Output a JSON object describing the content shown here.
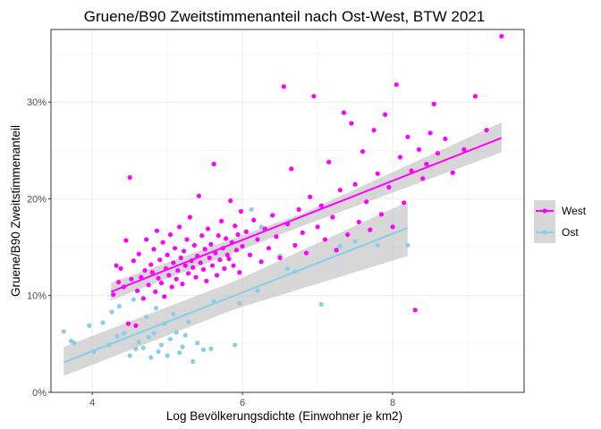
{
  "chart_data": {
    "type": "scatter",
    "title": "Gruene/B90 Zweitstimmenanteil nach Ost-West, BTW 2021",
    "xlabel": "Log Bevölkerungsdichte (Einwohner je km2)",
    "ylabel": "Gruene/B90 Zweitstimmenanteil",
    "xlim": [
      3.45,
      9.75
    ],
    "ylim": [
      0,
      0.375
    ],
    "x_ticks": [
      4,
      6,
      8
    ],
    "x_tick_labels": [
      "4",
      "6",
      "8"
    ],
    "y_ticks": [
      0,
      0.1,
      0.2,
      0.3
    ],
    "y_tick_labels": [
      "0%",
      "10%",
      "20%",
      "30%"
    ],
    "grid": true,
    "legend_position": "right",
    "series": [
      {
        "name": "West",
        "color": "#ff00ff",
        "trend": {
          "x": [
            4.25,
            9.45
          ],
          "y": [
            0.104,
            0.263
          ]
        },
        "band": {
          "x": [
            4.25,
            6.8,
            9.45
          ],
          "lower": [
            0.095,
            0.172,
            0.248
          ],
          "upper": [
            0.113,
            0.185,
            0.279
          ]
        },
        "points": [
          [
            4.28,
            0.101
          ],
          [
            4.32,
            0.131
          ],
          [
            4.35,
            0.114
          ],
          [
            4.38,
            0.128
          ],
          [
            4.42,
            0.109
          ],
          [
            4.45,
            0.157
          ],
          [
            4.48,
            0.071
          ],
          [
            4.5,
            0.222
          ],
          [
            4.52,
            0.117
          ],
          [
            4.55,
            0.136
          ],
          [
            4.58,
            0.069
          ],
          [
            4.6,
            0.105
          ],
          [
            4.62,
            0.143
          ],
          [
            4.65,
            0.119
          ],
          [
            4.68,
            0.097
          ],
          [
            4.7,
            0.126
          ],
          [
            4.72,
            0.158
          ],
          [
            4.75,
            0.111
          ],
          [
            4.78,
            0.132
          ],
          [
            4.8,
            0.124
          ],
          [
            4.82,
            0.148
          ],
          [
            4.84,
            0.104
          ],
          [
            4.86,
            0.167
          ],
          [
            4.88,
            0.118
          ],
          [
            4.9,
            0.137
          ],
          [
            4.92,
            0.113
          ],
          [
            4.94,
            0.155
          ],
          [
            4.96,
            0.099
          ],
          [
            4.98,
            0.128
          ],
          [
            5.0,
            0.142
          ],
          [
            5.02,
            0.121
          ],
          [
            5.04,
            0.163
          ],
          [
            5.06,
            0.109
          ],
          [
            5.08,
            0.134
          ],
          [
            5.1,
            0.149
          ],
          [
            5.12,
            0.117
          ],
          [
            5.14,
            0.126
          ],
          [
            5.16,
            0.171
          ],
          [
            5.18,
            0.139
          ],
          [
            5.2,
            0.112
          ],
          [
            5.22,
            0.146
          ],
          [
            5.24,
            0.131
          ],
          [
            5.26,
            0.158
          ],
          [
            5.28,
            0.123
          ],
          [
            5.3,
            0.181
          ],
          [
            5.32,
            0.136
          ],
          [
            5.34,
            0.129
          ],
          [
            5.36,
            0.152
          ],
          [
            5.38,
            0.119
          ],
          [
            5.4,
            0.141
          ],
          [
            5.42,
            0.203
          ],
          [
            5.44,
            0.134
          ],
          [
            5.46,
            0.162
          ],
          [
            5.48,
            0.127
          ],
          [
            5.5,
            0.148
          ],
          [
            5.52,
            0.115
          ],
          [
            5.54,
            0.169
          ],
          [
            5.56,
            0.139
          ],
          [
            5.58,
            0.153
          ],
          [
            5.6,
            0.131
          ],
          [
            5.62,
            0.236
          ],
          [
            5.64,
            0.144
          ],
          [
            5.66,
            0.121
          ],
          [
            5.68,
            0.162
          ],
          [
            5.7,
            0.137
          ],
          [
            5.72,
            0.177
          ],
          [
            5.74,
            0.149
          ],
          [
            5.76,
            0.128
          ],
          [
            5.78,
            0.159
          ],
          [
            5.8,
            0.142
          ],
          [
            5.82,
            0.138
          ],
          [
            5.84,
            0.198
          ],
          [
            5.86,
            0.155
          ],
          [
            5.88,
            0.131
          ],
          [
            5.9,
            0.172
          ],
          [
            5.92,
            0.147
          ],
          [
            5.94,
            0.163
          ],
          [
            5.96,
            0.124
          ],
          [
            5.98,
            0.187
          ],
          [
            6.0,
            0.151
          ],
          [
            6.05,
            0.166
          ],
          [
            6.1,
            0.142
          ],
          [
            6.15,
            0.178
          ],
          [
            6.2,
            0.158
          ],
          [
            6.25,
            0.135
          ],
          [
            6.3,
            0.169
          ],
          [
            6.35,
            0.149
          ],
          [
            6.4,
            0.183
          ],
          [
            6.45,
            0.161
          ],
          [
            6.5,
            0.139
          ],
          [
            6.55,
            0.316
          ],
          [
            6.6,
            0.174
          ],
          [
            6.65,
            0.231
          ],
          [
            6.7,
            0.152
          ],
          [
            6.75,
            0.189
          ],
          [
            6.8,
            0.165
          ],
          [
            6.85,
            0.144
          ],
          [
            6.9,
            0.202
          ],
          [
            6.95,
            0.306
          ],
          [
            7.0,
            0.171
          ],
          [
            7.05,
            0.193
          ],
          [
            7.1,
            0.158
          ],
          [
            7.15,
            0.238
          ],
          [
            7.2,
            0.181
          ],
          [
            7.25,
            0.147
          ],
          [
            7.3,
            0.209
          ],
          [
            7.35,
            0.289
          ],
          [
            7.4,
            0.163
          ],
          [
            7.45,
            0.278
          ],
          [
            7.5,
            0.215
          ],
          [
            7.55,
            0.176
          ],
          [
            7.6,
            0.249
          ],
          [
            7.65,
            0.197
          ],
          [
            7.7,
            0.168
          ],
          [
            7.75,
            0.271
          ],
          [
            7.8,
            0.226
          ],
          [
            7.85,
            0.184
          ],
          [
            7.9,
            0.287
          ],
          [
            7.95,
            0.212
          ],
          [
            8.0,
            0.171
          ],
          [
            8.05,
            0.318
          ],
          [
            8.1,
            0.243
          ],
          [
            8.15,
            0.196
          ],
          [
            8.2,
            0.264
          ],
          [
            8.25,
            0.229
          ],
          [
            8.3,
            0.085
          ],
          [
            8.35,
            0.251
          ],
          [
            8.4,
            0.221
          ],
          [
            8.45,
            0.236
          ],
          [
            8.5,
            0.268
          ],
          [
            8.55,
            0.298
          ],
          [
            8.6,
            0.247
          ],
          [
            8.7,
            0.262
          ],
          [
            8.8,
            0.227
          ],
          [
            8.95,
            0.251
          ],
          [
            9.1,
            0.306
          ],
          [
            9.25,
            0.271
          ],
          [
            9.45,
            0.368
          ]
        ]
      },
      {
        "name": "Ost",
        "color": "#87ceeb",
        "trend": {
          "x": [
            3.62,
            8.2
          ],
          "y": [
            0.031,
            0.17
          ]
        },
        "band": {
          "x": [
            3.62,
            5.9,
            8.2
          ],
          "lower": [
            0.017,
            0.086,
            0.141
          ],
          "upper": [
            0.047,
            0.115,
            0.197
          ]
        },
        "points": [
          [
            3.62,
            0.063
          ],
          [
            3.72,
            0.053
          ],
          [
            3.76,
            0.051
          ],
          [
            3.96,
            0.069
          ],
          [
            4.02,
            0.042
          ],
          [
            4.14,
            0.072
          ],
          [
            4.22,
            0.049
          ],
          [
            4.26,
            0.083
          ],
          [
            4.33,
            0.058
          ],
          [
            4.36,
            0.089
          ],
          [
            4.42,
            0.061
          ],
          [
            4.5,
            0.038
          ],
          [
            4.55,
            0.096
          ],
          [
            4.58,
            0.045
          ],
          [
            4.62,
            0.052
          ],
          [
            4.68,
            0.046
          ],
          [
            4.72,
            0.078
          ],
          [
            4.75,
            0.057
          ],
          [
            4.78,
            0.036
          ],
          [
            4.82,
            0.061
          ],
          [
            4.85,
            0.087
          ],
          [
            4.88,
            0.042
          ],
          [
            4.92,
            0.049
          ],
          [
            4.96,
            0.071
          ],
          [
            5.0,
            0.038
          ],
          [
            5.04,
            0.055
          ],
          [
            5.08,
            0.081
          ],
          [
            5.12,
            0.062
          ],
          [
            5.16,
            0.041
          ],
          [
            5.2,
            0.047
          ],
          [
            5.24,
            0.059
          ],
          [
            5.28,
            0.073
          ],
          [
            5.34,
            0.032
          ],
          [
            5.4,
            0.051
          ],
          [
            5.48,
            0.044
          ],
          [
            5.58,
            0.045
          ],
          [
            5.62,
            0.094
          ],
          [
            5.9,
            0.049
          ],
          [
            5.96,
            0.092
          ],
          [
            6.12,
            0.189
          ],
          [
            6.2,
            0.105
          ],
          [
            6.25,
            0.171
          ],
          [
            6.5,
            0.141
          ],
          [
            6.6,
            0.128
          ],
          [
            6.7,
            0.125
          ],
          [
            7.05,
            0.091
          ],
          [
            7.3,
            0.151
          ],
          [
            7.5,
            0.156
          ],
          [
            7.8,
            0.152
          ],
          [
            8.2,
            0.152
          ]
        ]
      }
    ]
  }
}
